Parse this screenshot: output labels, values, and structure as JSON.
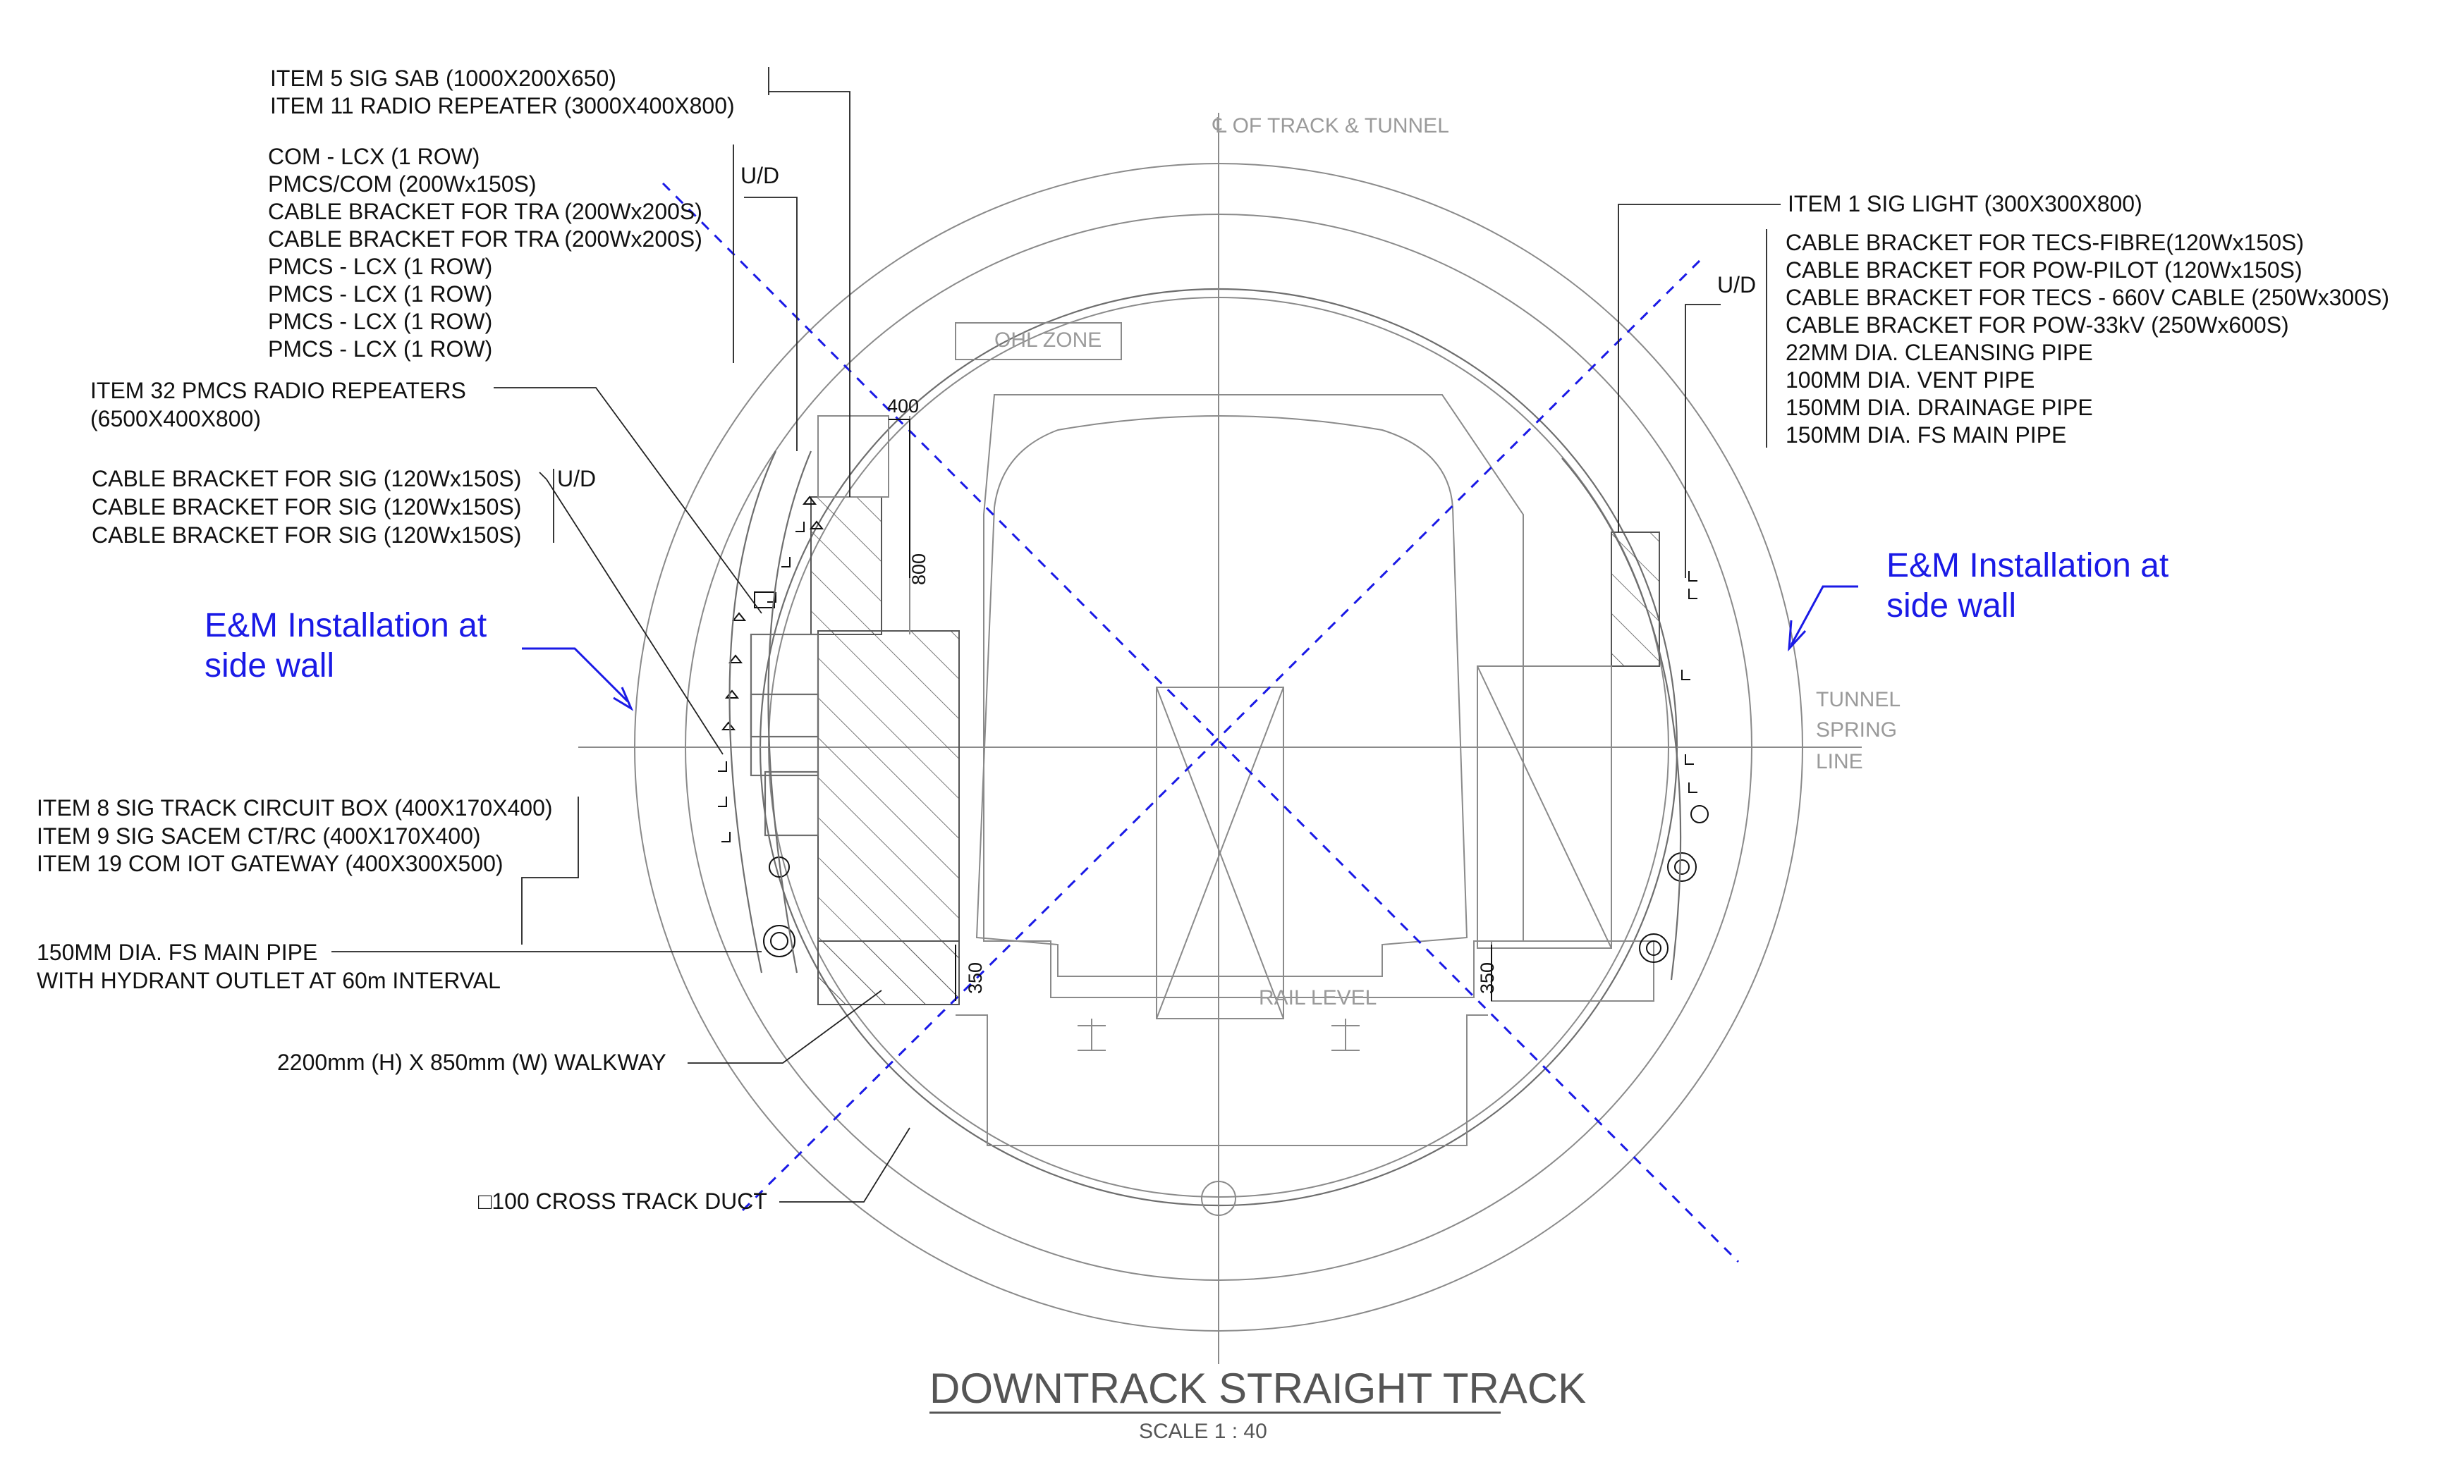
{
  "drawing": {
    "title": "DOWNTRACK STRAIGHT TRACK",
    "scale": "SCALE 1 : 40",
    "centerline_label": "℄ OF TRACK & TUNNEL",
    "ohl_zone": "OHL ZONE",
    "rail_level": "RAIL LEVEL",
    "spring_line": [
      "TUNNEL",
      "SPRING",
      "LINE"
    ],
    "dims": {
      "d400": "400",
      "d800": "800",
      "d350_left": "350",
      "d350_right": "350"
    }
  },
  "left_labels": {
    "sab": [
      "ITEM 5 SIG SAB (1000X200X650)",
      "ITEM 11 RADIO REPEATER (3000X400X800)"
    ],
    "lcx_group": [
      "COM - LCX (1 ROW)",
      "PMCS/COM (200Wx150S)",
      "CABLE BRACKET FOR TRA (200Wx200S)",
      "CABLE BRACKET FOR TRA (200Wx200S)",
      "PMCS - LCX (1 ROW)",
      "PMCS - LCX (1 ROW)",
      "PMCS - LCX (1 ROW)",
      "PMCS - LCX (1 ROW)"
    ],
    "ud1": "U/D",
    "pmcs_repeaters": [
      "ITEM 32 PMCS RADIO REPEATERS",
      "(6500X400X800)"
    ],
    "sig_brackets": [
      "CABLE BRACKET FOR SIG (120Wx150S)",
      "CABLE BRACKET FOR SIG (120Wx150S)",
      "CABLE BRACKET FOR SIG (120Wx150S)"
    ],
    "ud2": "U/D",
    "em_note": [
      "E&M Installation at",
      "side wall"
    ],
    "track_items": [
      "ITEM 8 SIG TRACK CIRCUIT BOX (400X170X400)",
      "ITEM 9 SIG SACEM CT/RC (400X170X400)",
      "ITEM 19 COM IOT GATEWAY (400X300X500)"
    ],
    "fs_pipe": [
      "150MM DIA. FS MAIN PIPE",
      "WITH HYDRANT OUTLET AT 60m INTERVAL"
    ],
    "walkway": "2200mm (H) X 850mm (W) WALKWAY",
    "duct": "□100 CROSS TRACK DUCT"
  },
  "right_labels": {
    "sig_light": "ITEM 1 SIG LIGHT (300X300X800)",
    "ud": "U/D",
    "list": [
      "CABLE BRACKET FOR TECS-FIBRE(120Wx150S)",
      "CABLE BRACKET FOR POW-PILOT (120Wx150S)",
      "CABLE BRACKET FOR TECS - 660V CABLE (250Wx300S)",
      "CABLE BRACKET FOR POW-33kV (250Wx600S)",
      "22MM DIA. CLEANSING PIPE",
      "100MM DIA. VENT PIPE",
      "150MM DIA. DRAINAGE PIPE",
      "150MM DIA. FS MAIN PIPE"
    ],
    "em_note": [
      "E&M Installation at",
      "side wall"
    ]
  },
  "colors": {
    "annotation_blue": "#1a1ae6",
    "line_gray": "#8a8a8a",
    "text": "#111111"
  }
}
